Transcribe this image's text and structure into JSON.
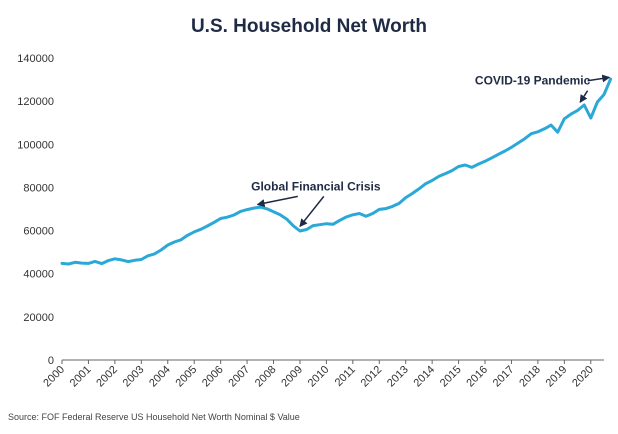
{
  "chart_data": {
    "type": "line",
    "title": "U.S. Household Net Worth",
    "xlabel": "",
    "ylabel": "",
    "xlim": [
      2000,
      2020.5
    ],
    "ylim": [
      0,
      140000
    ],
    "y_ticks": [
      0,
      20000,
      40000,
      60000,
      80000,
      100000,
      120000,
      140000
    ],
    "x_ticks": [
      "2000",
      "2001",
      "2002",
      "2003",
      "2004",
      "2005",
      "2006",
      "2007",
      "2008",
      "2009",
      "2010",
      "2011",
      "2012",
      "2013",
      "2014",
      "2015",
      "2016",
      "2017",
      "2018",
      "2019",
      "2020"
    ],
    "grid": false,
    "legend": "none",
    "series": [
      {
        "color": "#2aa8d8",
        "points": [
          [
            2000.0,
            44800
          ],
          [
            2000.25,
            44500
          ],
          [
            2000.5,
            45300
          ],
          [
            2000.75,
            44900
          ],
          [
            2001.0,
            44800
          ],
          [
            2001.25,
            45700
          ],
          [
            2001.5,
            44700
          ],
          [
            2001.75,
            46100
          ],
          [
            2002.0,
            46900
          ],
          [
            2002.25,
            46400
          ],
          [
            2002.5,
            45600
          ],
          [
            2002.75,
            46200
          ],
          [
            2003.0,
            46600
          ],
          [
            2003.25,
            48300
          ],
          [
            2003.5,
            49200
          ],
          [
            2003.75,
            51000
          ],
          [
            2004.0,
            53300
          ],
          [
            2004.25,
            54700
          ],
          [
            2004.5,
            55700
          ],
          [
            2004.75,
            57800
          ],
          [
            2005.0,
            59400
          ],
          [
            2005.25,
            60600
          ],
          [
            2005.5,
            62100
          ],
          [
            2005.75,
            63800
          ],
          [
            2006.0,
            65600
          ],
          [
            2006.25,
            66200
          ],
          [
            2006.5,
            67200
          ],
          [
            2006.75,
            68900
          ],
          [
            2007.0,
            69700
          ],
          [
            2007.25,
            70400
          ],
          [
            2007.5,
            70900
          ],
          [
            2007.75,
            70100
          ],
          [
            2008.0,
            68700
          ],
          [
            2008.25,
            67300
          ],
          [
            2008.5,
            65300
          ],
          [
            2008.75,
            62200
          ],
          [
            2009.0,
            59800
          ],
          [
            2009.25,
            60500
          ],
          [
            2009.5,
            62300
          ],
          [
            2009.75,
            62700
          ],
          [
            2010.0,
            63200
          ],
          [
            2010.25,
            62900
          ],
          [
            2010.5,
            64700
          ],
          [
            2010.75,
            66300
          ],
          [
            2011.0,
            67300
          ],
          [
            2011.25,
            67900
          ],
          [
            2011.5,
            66600
          ],
          [
            2011.75,
            67900
          ],
          [
            2012.0,
            69800
          ],
          [
            2012.25,
            70200
          ],
          [
            2012.5,
            71200
          ],
          [
            2012.75,
            72600
          ],
          [
            2013.0,
            75300
          ],
          [
            2013.25,
            77200
          ],
          [
            2013.5,
            79300
          ],
          [
            2013.75,
            81700
          ],
          [
            2014.0,
            83200
          ],
          [
            2014.25,
            85100
          ],
          [
            2014.5,
            86400
          ],
          [
            2014.75,
            87800
          ],
          [
            2015.0,
            89700
          ],
          [
            2015.25,
            90400
          ],
          [
            2015.5,
            89300
          ],
          [
            2015.75,
            90800
          ],
          [
            2016.0,
            92100
          ],
          [
            2016.25,
            93700
          ],
          [
            2016.5,
            95300
          ],
          [
            2016.75,
            96900
          ],
          [
            2017.0,
            98600
          ],
          [
            2017.25,
            100600
          ],
          [
            2017.5,
            102600
          ],
          [
            2017.75,
            104900
          ],
          [
            2018.0,
            105800
          ],
          [
            2018.25,
            107200
          ],
          [
            2018.5,
            108900
          ],
          [
            2018.75,
            105600
          ],
          [
            2019.0,
            111800
          ],
          [
            2019.25,
            114000
          ],
          [
            2019.5,
            115700
          ],
          [
            2019.75,
            118200
          ],
          [
            2020.0,
            112200
          ],
          [
            2020.25,
            119600
          ],
          [
            2020.5,
            123100
          ],
          [
            2020.75,
            130200
          ]
        ]
      }
    ],
    "annotations": [
      {
        "text": "Global Financial Crisis",
        "anchor": [
          2009.6,
          78600
        ],
        "targets": [
          [
            2007.4,
            72100
          ],
          [
            2009.0,
            62000
          ]
        ]
      },
      {
        "text": "COVID-19 Pandemic",
        "anchor": [
          2017.8,
          127600
        ],
        "targets": [
          [
            2019.6,
            119500
          ],
          [
            2020.7,
            131000
          ]
        ]
      }
    ]
  },
  "source": "Source: FOF Federal Reserve US Household Net Worth Nominal $ Value"
}
